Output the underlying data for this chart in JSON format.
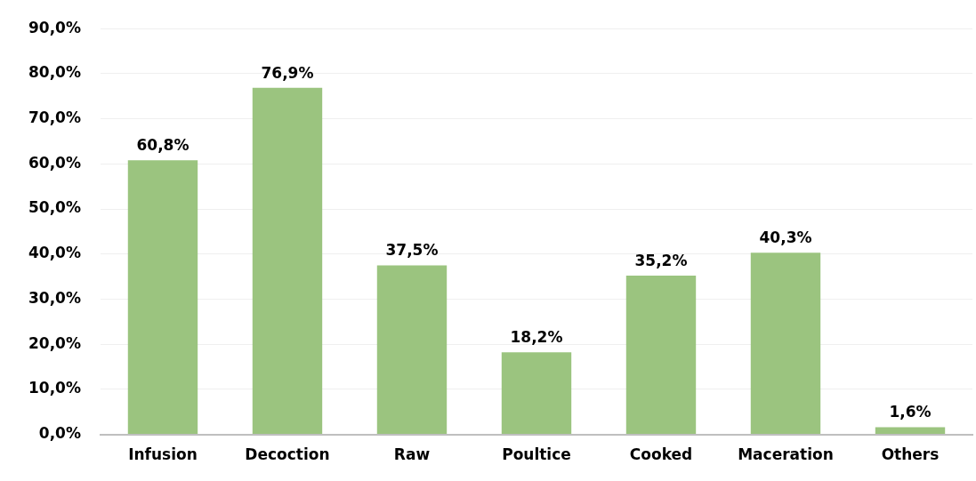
{
  "chart_data": {
    "type": "bar",
    "categories": [
      "Infusion",
      "Decoction",
      "Raw",
      "Poultice",
      "Cooked",
      "Maceration",
      "Others"
    ],
    "values": [
      60.8,
      76.9,
      37.5,
      18.2,
      35.2,
      40.3,
      1.6
    ],
    "value_labels": [
      "60,8%",
      "76,9%",
      "37,5%",
      "18,2%",
      "35,2%",
      "40,3%",
      "1,6%"
    ],
    "color": "#9bc47f",
    "ylim": [
      0,
      90
    ],
    "yticks": [
      {
        "value": 0,
        "label": "0,0%"
      },
      {
        "value": 10,
        "label": "10,0%"
      },
      {
        "value": 20,
        "label": "20,0%"
      },
      {
        "value": 30,
        "label": "30,0%"
      },
      {
        "value": 40,
        "label": "40,0%"
      },
      {
        "value": 50,
        "label": "50,0%"
      },
      {
        "value": 60,
        "label": "60,0%"
      },
      {
        "value": 70,
        "label": "70,0%"
      },
      {
        "value": 80,
        "label": "80,0%"
      },
      {
        "value": 90,
        "label": "90,0%"
      }
    ],
    "grid": "y",
    "legend": false
  }
}
